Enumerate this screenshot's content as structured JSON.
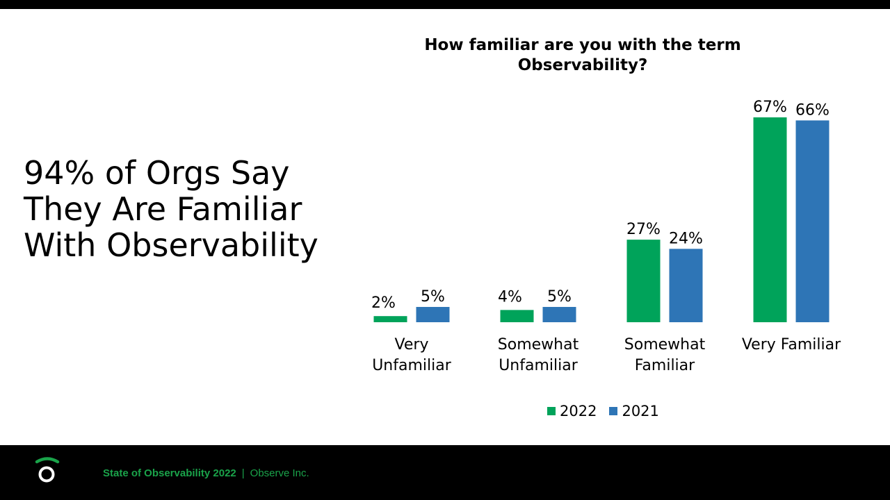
{
  "headline": {
    "lines": [
      "94% of Orgs Say",
      "They Are Familiar",
      "With Observability"
    ]
  },
  "chart_data": {
    "type": "bar",
    "title_lines": [
      "How familiar are you with the term",
      "Observability?"
    ],
    "categories": [
      "Very Unfamiliar",
      "Somewhat Unfamiliar",
      "Somewhat Familiar",
      "Very Familiar"
    ],
    "category_label_lines": [
      [
        "Very",
        "Unfamiliar"
      ],
      [
        "Somewhat",
        "Unfamiliar"
      ],
      [
        "Somewhat",
        "Familiar"
      ],
      [
        "Very Familiar"
      ]
    ],
    "series": [
      {
        "name": "2022",
        "values": [
          2,
          4,
          27,
          67
        ],
        "labels": [
          "2%",
          "4%",
          "27%",
          "67%"
        ],
        "color": "#00a35a"
      },
      {
        "name": "2021",
        "values": [
          5,
          5,
          24,
          66
        ],
        "labels": [
          "5%",
          "5%",
          "24%",
          "66%"
        ],
        "color": "#2e75b6"
      }
    ],
    "ylim": [
      0,
      70
    ],
    "grid": false,
    "axes_visible": false,
    "legend_position": "bottom-center"
  },
  "footer": {
    "title": "State of Observability  2022",
    "separator": "|",
    "company": "Observe Inc.",
    "logo_icon": "observe-logo-icon",
    "accent_color": "#1aa34a"
  }
}
